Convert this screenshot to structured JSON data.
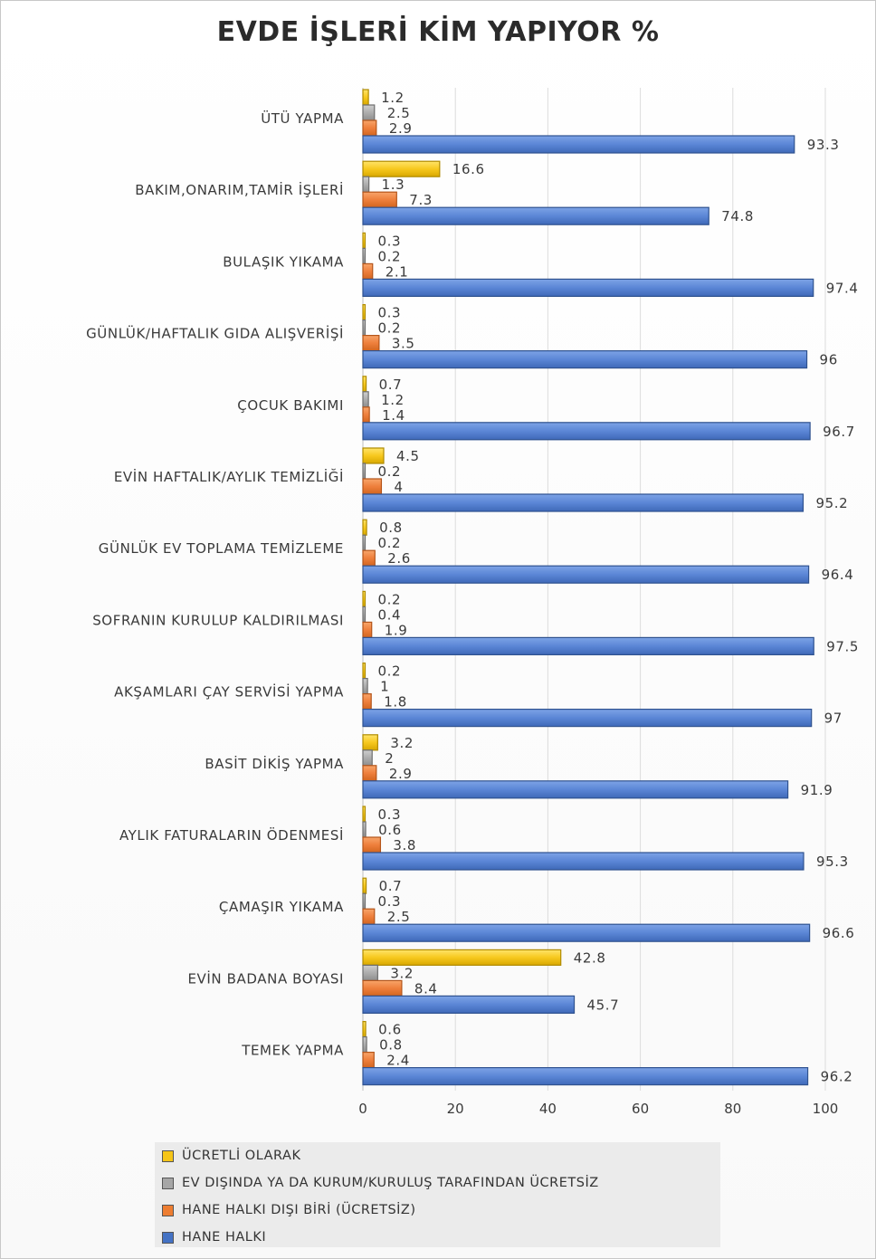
{
  "chart_data": {
    "type": "bar",
    "orientation": "horizontal",
    "title": "EVDE İŞLERİ KİM YAPIYOR %",
    "categories": [
      "ÜTÜ YAPMA",
      "BAKIM,ONARIM,TAMİR İŞLERİ",
      "BULAŞIK YIKAMA",
      "GÜNLÜK/HAFTALIK GIDA ALIŞVERİŞİ",
      "ÇOCUK BAKIMI",
      "EVİN HAFTALIK/AYLIK TEMİZLİĞİ",
      "GÜNLÜK EV TOPLAMA TEMİZLEME",
      "SOFRANIN KURULUP KALDIRILMASI",
      "AKŞAMLARI ÇAY SERVİSİ YAPMA",
      "BASİT DİKİŞ YAPMA",
      "AYLIK FATURALARIN ÖDENMESİ",
      "ÇAMAŞIR YIKAMA",
      "EVİN BADANA BOYASI",
      "TEMEK YAPMA"
    ],
    "series": [
      {
        "name": "ÜCRETLİ OLARAK",
        "color": "#f5c518",
        "values": [
          1.2,
          16.6,
          0.3,
          0.3,
          0.7,
          4.5,
          0.8,
          0.2,
          0.2,
          3.2,
          0.3,
          0.7,
          42.8,
          0.6
        ],
        "labels": [
          "1.2",
          "16.6",
          "0.3",
          "0.3",
          "0.7",
          "4.5",
          "0.8",
          "0.2",
          "0.2",
          "3.2",
          "0.3",
          "0.7",
          "42.8",
          "0.6"
        ]
      },
      {
        "name": "EV DIŞINDA YA DA KURUM/KURULUŞ TARAFINDAN ÜCRETSİZ",
        "color": "#a6a6a6",
        "values": [
          2.5,
          1.3,
          0.2,
          0.2,
          1.2,
          0.2,
          0.2,
          0.4,
          1,
          2,
          0.6,
          0.3,
          3.2,
          0.8
        ],
        "labels": [
          "2.5",
          "1.3",
          "0.2",
          "0.2",
          "1.2",
          "0.2",
          "0.2",
          "0.4",
          "1",
          "2",
          "0.6",
          "0.3",
          "3.2",
          "0.8"
        ]
      },
      {
        "name": "HANE HALKI DIŞI BİRİ (ÜCRETSİZ)",
        "color": "#ed7d31",
        "values": [
          2.9,
          7.3,
          2.1,
          3.5,
          1.4,
          4,
          2.6,
          1.9,
          1.8,
          2.9,
          3.8,
          2.5,
          8.4,
          2.4
        ],
        "labels": [
          "2.9",
          "7.3",
          "2.1",
          "3.5",
          "1.4",
          "4",
          "2.6",
          "1.9",
          "1.8",
          "2.9",
          "3.8",
          "2.5",
          "8.4",
          "2.4"
        ]
      },
      {
        "name": "HANE HALKI",
        "color": "#4472c4",
        "values": [
          93.3,
          74.8,
          97.4,
          96,
          96.7,
          95.2,
          96.4,
          97.5,
          97,
          91.9,
          95.3,
          96.6,
          45.7,
          96.2
        ],
        "labels": [
          "93.3",
          "74.8",
          "97.4",
          "96",
          "96.7",
          "95.2",
          "96.4",
          "97.5",
          "97",
          "91.9",
          "95.3",
          "96.6",
          "45.7",
          "96.2"
        ]
      }
    ],
    "xlim": [
      0,
      100
    ],
    "xticks": [
      "0",
      "20",
      "40",
      "60",
      "80",
      "100"
    ],
    "grid": true,
    "legend_position": "bottom"
  }
}
